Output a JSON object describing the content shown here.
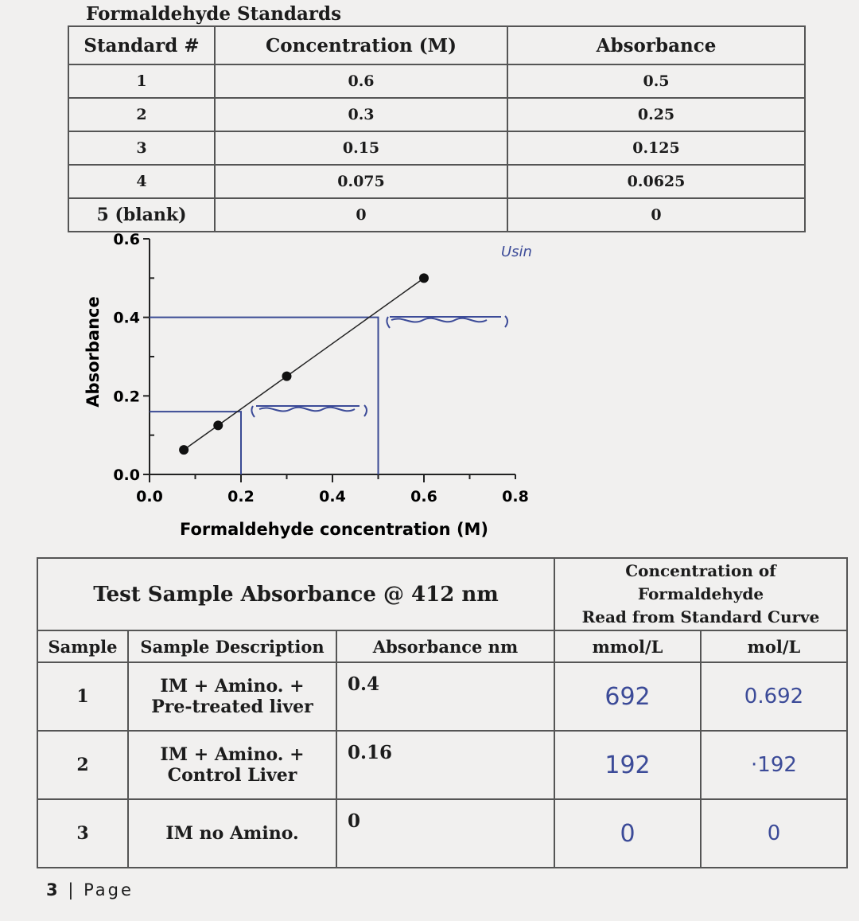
{
  "standards": {
    "title": "Formaldehyde Standards",
    "headers": [
      "Standard #",
      "Concentration (M)",
      "Absorbance"
    ],
    "rows": [
      [
        "1",
        "0.6",
        "0.5"
      ],
      [
        "2",
        "0.3",
        "0.25"
      ],
      [
        "3",
        "0.15",
        "0.125"
      ],
      [
        "4",
        "0.075",
        "0.0625"
      ],
      [
        "5 (blank)",
        "0",
        "0"
      ]
    ]
  },
  "chart_data": {
    "type": "scatter",
    "xlabel": "Formaldehyde concentration (M)",
    "ylabel": "Absorbance",
    "xlim": [
      0,
      0.8
    ],
    "ylim": [
      0,
      0.6
    ],
    "xticks": [
      "0.0",
      "0.2",
      "0.4",
      "0.6",
      "0.8"
    ],
    "yticks": [
      "0.0",
      "0.2",
      "0.4",
      "0.6"
    ],
    "points": [
      {
        "x": 0.075,
        "y": 0.0625
      },
      {
        "x": 0.15,
        "y": 0.125
      },
      {
        "x": 0.3,
        "y": 0.25
      },
      {
        "x": 0.6,
        "y": 0.5
      }
    ],
    "fit_line": {
      "x": [
        0.2,
        0.6
      ],
      "y": [
        0.16,
        0.5
      ]
    },
    "readings": [
      {
        "x": 0.5,
        "y": 0.4
      },
      {
        "x": 0.2,
        "y": 0.16
      }
    ],
    "annotation_top_right": "Usin"
  },
  "samples": {
    "title": "Test Sample Absorbance @ 412 nm",
    "conc_title": [
      "Concentration of",
      "Formaldehyde",
      "Read from Standard Curve"
    ],
    "headers": [
      "Sample",
      "Sample Description",
      "Absorbance nm",
      "mmol/L",
      "mol/L"
    ],
    "rows": [
      {
        "n": "1",
        "desc1": "IM + Amino. +",
        "desc2": "Pre-treated liver",
        "abs": "0.4",
        "mmol": "692",
        "mol": "0.692"
      },
      {
        "n": "2",
        "desc1": "IM + Amino. +",
        "desc2": "Control Liver",
        "abs": "0.16",
        "mmol": "192",
        "mol": "·192"
      },
      {
        "n": "3",
        "desc1": "IM no Amino.",
        "desc2": "",
        "abs": "0",
        "mmol": "0",
        "mol": "0"
      }
    ]
  },
  "footer": {
    "page": "3",
    "label": "| Page"
  }
}
